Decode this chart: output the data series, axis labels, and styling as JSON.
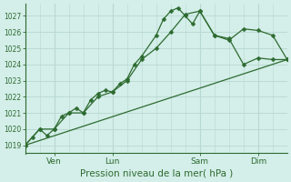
{
  "xlabel": "Pression niveau de la mer( hPa )",
  "background_color": "#d4eee9",
  "grid_color_major": "#b8d8d2",
  "grid_color_minor": "#c8e5e0",
  "line_color": "#2d6b30",
  "ylim": [
    1018.5,
    1027.75
  ],
  "xlim": [
    0,
    108
  ],
  "yticks": [
    1019,
    1020,
    1021,
    1022,
    1023,
    1024,
    1025,
    1026,
    1027
  ],
  "xtick_positions": [
    12,
    36,
    72,
    96
  ],
  "xtick_labels": [
    "Ven",
    "Lun",
    "Sam",
    "Dim"
  ],
  "vline_positions": [
    12,
    36,
    72,
    96
  ],
  "series1_x": [
    0,
    3,
    6,
    9,
    12,
    15,
    18,
    21,
    24,
    27,
    30,
    33,
    36,
    39,
    42,
    45,
    48,
    54,
    57,
    60,
    63,
    66,
    69,
    72,
    78,
    84,
    90,
    96,
    102,
    108
  ],
  "series1_y": [
    1019.0,
    1019.5,
    1020.0,
    1019.6,
    1020.0,
    1020.8,
    1021.0,
    1021.3,
    1021.0,
    1021.8,
    1022.2,
    1022.4,
    1022.3,
    1022.8,
    1023.1,
    1024.0,
    1024.5,
    1025.8,
    1026.8,
    1027.3,
    1027.5,
    1027.0,
    1026.5,
    1027.3,
    1025.8,
    1025.5,
    1026.2,
    1026.1,
    1025.8,
    1024.3
  ],
  "series2_x": [
    0,
    6,
    12,
    18,
    24,
    30,
    36,
    42,
    48,
    54,
    60,
    66,
    72,
    78,
    84,
    90,
    96,
    102,
    108
  ],
  "series2_y": [
    1019.0,
    1020.0,
    1020.0,
    1021.0,
    1021.0,
    1022.0,
    1022.3,
    1023.0,
    1024.3,
    1025.0,
    1026.0,
    1027.1,
    1027.3,
    1025.8,
    1025.6,
    1024.0,
    1024.4,
    1024.3,
    1024.3
  ],
  "trend_x": [
    0,
    108
  ],
  "trend_y": [
    1019.0,
    1024.3
  ],
  "marker_size": 2.5,
  "line_width": 0.9,
  "ylabel_fontsize": 5.5,
  "xlabel_fontsize": 7.5,
  "xtick_fontsize": 6.5
}
